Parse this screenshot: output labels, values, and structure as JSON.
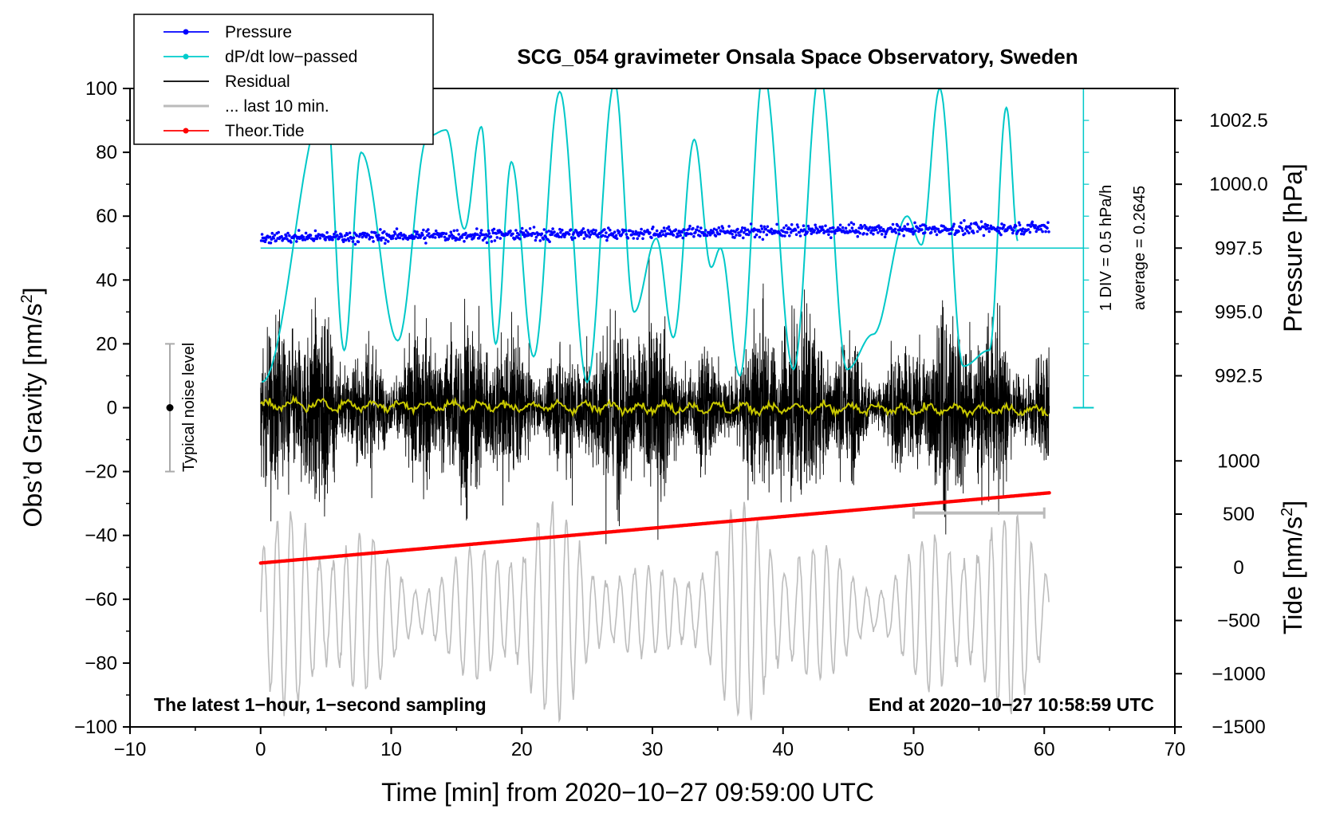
{
  "chart_data": {
    "type": "line",
    "title": "SCG_054 gravimeter Onsala Space Observatory, Sweden",
    "xlabel": "Time [min] from 2020−10−27 09:59:00 UTC",
    "ylabel_prefix": "Obs’d Gravity [nm/s",
    "ylabel_sup": "2",
    "ylabel_suffix": "]",
    "right_pressure_label": "Pressure [hPa]",
    "right_tide_prefix": "Tide [nm/s",
    "right_tide_sup": "2",
    "right_tide_suffix": "]",
    "xlim": [
      -10,
      70
    ],
    "ylim": [
      -100,
      100
    ],
    "x_ticks": [
      "−10",
      "0",
      "10",
      "20",
      "30",
      "40",
      "50",
      "60",
      "70"
    ],
    "y_ticks": [
      "−100",
      "−80",
      "−60",
      "−40",
      "−20",
      "0",
      "20",
      "40",
      "60",
      "80",
      "100"
    ],
    "pressure_ticks": [
      "992.5",
      "995.0",
      "997.5",
      "1000.0",
      "1002.5"
    ],
    "pressure_tick_values": [
      992.5,
      995.0,
      997.5,
      1000.0,
      1002.5
    ],
    "tide_ticks": [
      "−1500",
      "−1000",
      "−500",
      "0",
      "500",
      "1000"
    ],
    "tide_tick_values": [
      -1500,
      -1000,
      -500,
      0,
      500,
      1000
    ],
    "legend": [
      {
        "label": "Pressure",
        "color": "#0000ff",
        "marker": true
      },
      {
        "label": "dP/dt low−passed",
        "color": "#00cccc",
        "marker": true
      },
      {
        "label": "Residual",
        "color": "#000000",
        "marker": false
      },
      {
        "label": "... last 10 min.",
        "color": "#bbbbbb",
        "marker": false
      },
      {
        "label": "Theor.Tide",
        "color": "#ff0000",
        "marker": true
      }
    ],
    "annotations": {
      "noise_label": "Typical noise level",
      "div_label": "1 DIV = 0.5 hPa/h",
      "average_label": "average = 0.2645",
      "bottom_left": "The latest 1−hour, 1−second sampling",
      "bottom_right": "End at 2020−10−27 10:58:59 UTC"
    },
    "series_colors": {
      "pressure": "#0000ff",
      "dpdt": "#00c8c8",
      "residual": "#000000",
      "smoothed": "#c8c800",
      "last10": "#bdbdbd",
      "tide": "#ff0000"
    },
    "pressure_hpa": {
      "start": 997.9,
      "end": 998.3,
      "scatter": 0.35
    },
    "tide_nm_s2": {
      "start": 40,
      "end": 700
    },
    "noise_level_range": [
      -20,
      20
    ],
    "dpdt_average_level": 50,
    "dpdt_peaks": [
      {
        "t": 5.0,
        "v": 96
      },
      {
        "t": 6.4,
        "v": 18
      },
      {
        "t": 7.7,
        "v": 80
      },
      {
        "t": 10.5,
        "v": 21
      },
      {
        "t": 12.8,
        "v": 85
      },
      {
        "t": 14.2,
        "v": 87
      },
      {
        "t": 15.6,
        "v": 56
      },
      {
        "t": 16.9,
        "v": 88
      },
      {
        "t": 18.0,
        "v": 20
      },
      {
        "t": 19.2,
        "v": 77
      },
      {
        "t": 20.9,
        "v": 16
      },
      {
        "t": 22.9,
        "v": 99
      },
      {
        "t": 25.0,
        "v": 8
      },
      {
        "t": 27.1,
        "v": 102
      },
      {
        "t": 28.6,
        "v": 30
      },
      {
        "t": 30.3,
        "v": 53
      },
      {
        "t": 31.6,
        "v": 22
      },
      {
        "t": 33.2,
        "v": 84
      },
      {
        "t": 34.5,
        "v": 44
      },
      {
        "t": 35.2,
        "v": 50
      },
      {
        "t": 36.7,
        "v": 10
      },
      {
        "t": 38.5,
        "v": 105
      },
      {
        "t": 40.8,
        "v": 12
      },
      {
        "t": 42.8,
        "v": 105
      },
      {
        "t": 44.9,
        "v": 12
      },
      {
        "t": 46.9,
        "v": 23
      },
      {
        "t": 49.5,
        "v": 60
      },
      {
        "t": 50.6,
        "v": 51
      },
      {
        "t": 52.0,
        "v": 100
      },
      {
        "t": 53.8,
        "v": 13
      },
      {
        "t": 55.8,
        "v": 18
      },
      {
        "t": 57.1,
        "v": 94
      },
      {
        "t": 58.0,
        "v": 52
      }
    ]
  }
}
